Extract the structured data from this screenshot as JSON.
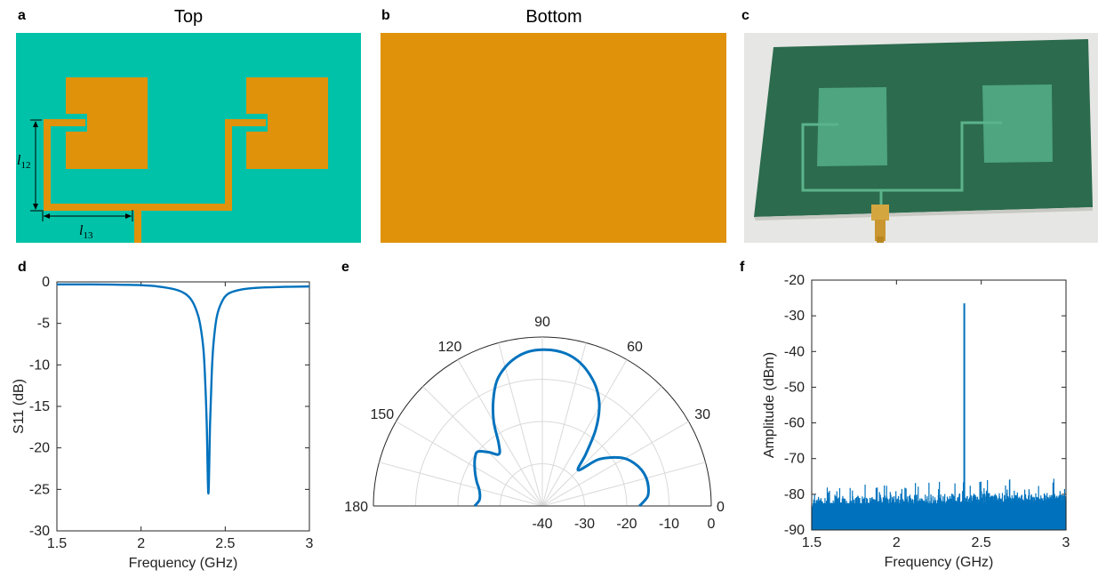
{
  "panel_labels": {
    "a": "a",
    "b": "b",
    "c": "c",
    "d": "d",
    "e": "e",
    "f": "f"
  },
  "layout_titles": {
    "top": "Top",
    "bottom": "Bottom"
  },
  "antenna": {
    "dim_l12": "l",
    "dim_l12_sub": "12",
    "dim_l13": "l",
    "dim_l13_sub": "13",
    "colors": {
      "substrate": "#00c2a8",
      "copper": "#e0920a",
      "pcb": "#2c6b4d",
      "pcb_patch": "#4ea57f",
      "background": "#e8e8e8"
    }
  },
  "chart_data": [
    {
      "id": "d",
      "type": "line",
      "xlabel": "Frequency (GHz)",
      "ylabel": "S11 (dB)",
      "xlim": [
        1.5,
        3
      ],
      "ylim": [
        -30,
        0
      ],
      "xticks": [
        "1.5",
        "2",
        "2.5",
        "3"
      ],
      "yticks": [
        "0",
        "-5",
        "-10",
        "-15",
        "-20",
        "-25",
        "-30"
      ],
      "series": [
        {
          "color": "#0072bd",
          "x": [
            1.5,
            1.7,
            1.9,
            2.0,
            2.1,
            2.2,
            2.26,
            2.3,
            2.33,
            2.35,
            2.37,
            2.38,
            2.39,
            2.4,
            2.41,
            2.42,
            2.43,
            2.45,
            2.48,
            2.52,
            2.6,
            2.7,
            2.85,
            3.0
          ],
          "y": [
            -0.3,
            -0.3,
            -0.35,
            -0.4,
            -0.55,
            -0.9,
            -1.4,
            -2.2,
            -3.5,
            -5.0,
            -8.0,
            -11.5,
            -17.0,
            -25.5,
            -17.0,
            -11.0,
            -7.5,
            -4.2,
            -2.4,
            -1.4,
            -0.9,
            -0.7,
            -0.6,
            -0.55
          ]
        }
      ]
    },
    {
      "id": "e",
      "type": "polar",
      "angle_ticks": [
        "0",
        "30",
        "60",
        "90",
        "120",
        "150",
        "180"
      ],
      "radial_ticks": [
        "-40",
        "-30",
        "-20",
        "-10",
        "0"
      ],
      "rlim": [
        -40,
        0
      ],
      "series": [
        {
          "color": "#0072bd",
          "theta": [
            0,
            5,
            10,
            15,
            20,
            25,
            30,
            35,
            40,
            45,
            50,
            55,
            60,
            65,
            70,
            75,
            80,
            85,
            90,
            95,
            100,
            105,
            110,
            115,
            120,
            125,
            130,
            135,
            140,
            145,
            150,
            155,
            160,
            165,
            170,
            175,
            180
          ],
          "r": [
            -17,
            -15,
            -14.5,
            -14.5,
            -15,
            -16,
            -17.5,
            -20,
            -23,
            -28,
            -24,
            -18,
            -13,
            -9.5,
            -7,
            -5,
            -3.7,
            -3.1,
            -3,
            -3.3,
            -4.3,
            -6,
            -8.5,
            -12.5,
            -17,
            -22,
            -24,
            -22,
            -20,
            -20.5,
            -21.5,
            -22.5,
            -23.5,
            -24.5,
            -25,
            -25,
            -24
          ]
        }
      ]
    },
    {
      "id": "f",
      "type": "line",
      "xlabel": "Frequency (GHz)",
      "ylabel": "Amplitude (dBm)",
      "xlim": [
        1.5,
        3
      ],
      "ylim": [
        -90,
        -20
      ],
      "xticks": [
        "1.5",
        "2",
        "2.5",
        "3"
      ],
      "yticks": [
        "-20",
        "-30",
        "-40",
        "-50",
        "-60",
        "-70",
        "-80",
        "-90"
      ],
      "peak": {
        "x": 2.4,
        "y": -26.5
      },
      "noise_floor": -84,
      "noise_peak_range": [
        -82,
        -75
      ],
      "series": [
        {
          "color": "#0072bd",
          "name": ""
        }
      ]
    }
  ]
}
